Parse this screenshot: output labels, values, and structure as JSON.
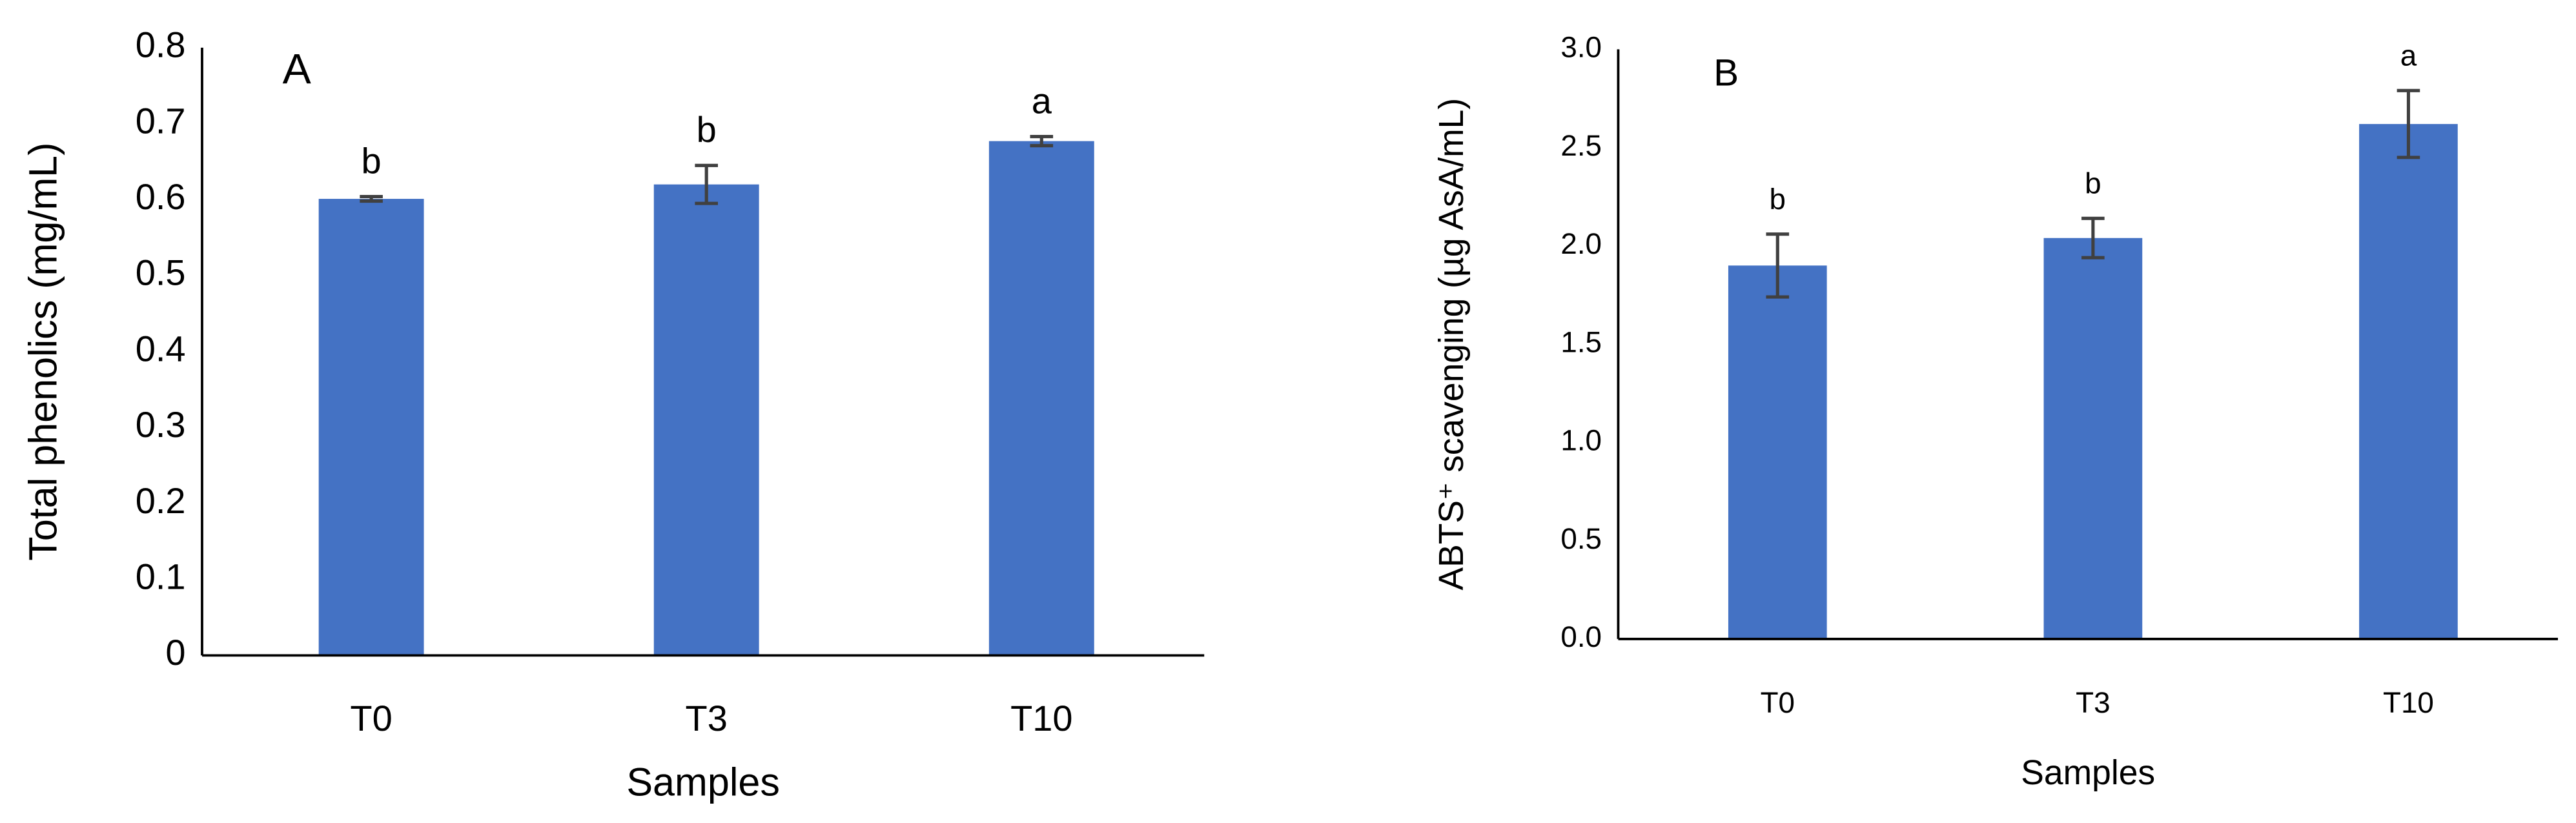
{
  "chart_data": [
    {
      "type": "bar",
      "panel": "A",
      "ylabel": "Total phenolics (mg/mL)",
      "xlabel": "Samples",
      "categories": [
        "T0",
        "T3",
        "T10"
      ],
      "values": [
        0.601,
        0.62,
        0.677
      ],
      "errors": [
        0.003,
        0.025,
        0.006
      ],
      "letters": [
        "b",
        "b",
        "a"
      ],
      "color": "#4472c4",
      "ylim": [
        0,
        0.8
      ],
      "yticks": [
        0,
        0.1,
        0.2,
        0.3,
        0.4,
        0.5,
        0.6,
        0.7,
        0.8
      ]
    },
    {
      "type": "bar",
      "panel": "B",
      "ylabel": "ABTS⁺ scavenging (µg AsA/mL)",
      "xlabel": "Samples",
      "categories": [
        "T0",
        "T3",
        "T10"
      ],
      "values": [
        1.9,
        2.04,
        2.62
      ],
      "errors": [
        0.16,
        0.1,
        0.17
      ],
      "letters": [
        "b",
        "b",
        "a"
      ],
      "color": "#4472c4",
      "ylim": [
        0,
        3
      ],
      "yticks": [
        {
          "value": 0,
          "label": "0.0"
        },
        0.5,
        {
          "value": 1,
          "label": "1.0"
        },
        1.5,
        {
          "value": 2,
          "label": "2.0"
        },
        2.5,
        {
          "value": 3,
          "label": "3.0"
        }
      ]
    }
  ]
}
